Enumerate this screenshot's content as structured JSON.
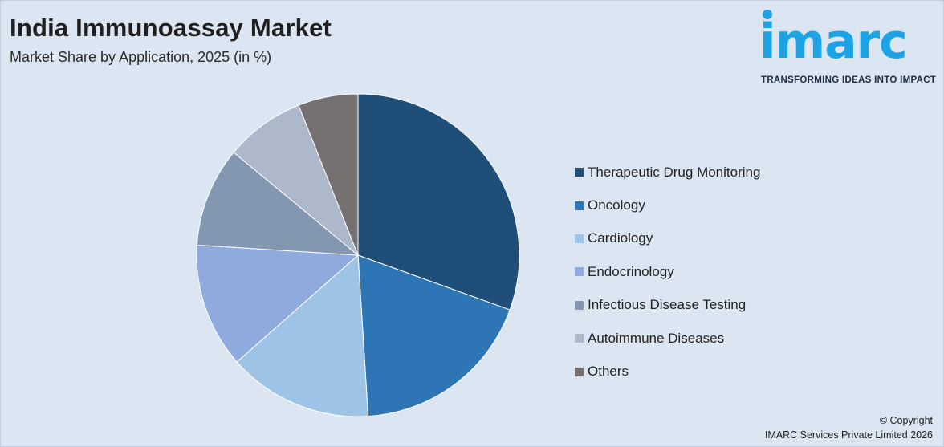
{
  "header": {
    "title": "India Immunoassay Market",
    "subtitle": "Market Share by Application, 2025 (in %)"
  },
  "logo": {
    "wordmark": "imarc",
    "tagline": "TRANSFORMING IDEAS INTO IMPACT",
    "color": "#1ba3e6"
  },
  "footer": {
    "copyright": "© Copyright",
    "company": "IMARC Services Private Limited 2026"
  },
  "chart_data": {
    "type": "pie",
    "title": "India Immunoassay Market",
    "subtitle": "Market Share by Application, 2025 (in %)",
    "legend_position": "right",
    "start_angle_deg": 0,
    "direction": "clockwise",
    "categories": [
      "Therapeutic Drug Monitoring",
      "Oncology",
      "Cardiology",
      "Endocrinology",
      "Infectious Disease Testing",
      "Autoimmune Diseases",
      "Others"
    ],
    "values": [
      30.5,
      18.5,
      14.5,
      12.5,
      10,
      8,
      6
    ],
    "colors": [
      "#1f4e79",
      "#2e75b6",
      "#9dc3e6",
      "#8faadc",
      "#8497b0",
      "#adb9ca",
      "#767171"
    ]
  }
}
